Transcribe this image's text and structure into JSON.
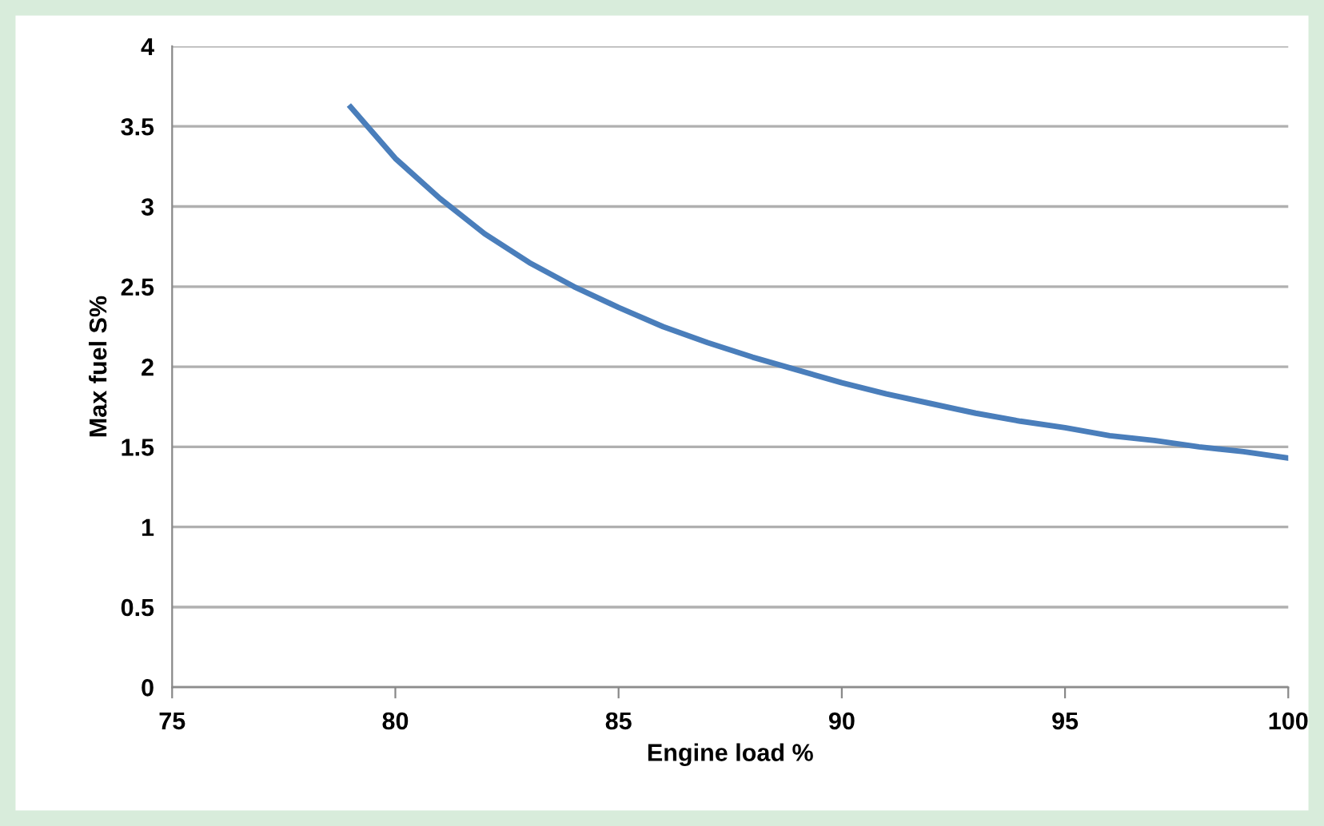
{
  "chart_data": {
    "type": "line",
    "xlabel": "Engine load %",
    "ylabel": "Max fuel S%",
    "x": [
      79,
      80,
      81,
      82,
      83,
      84,
      85,
      86,
      87,
      88,
      89,
      90,
      91,
      92,
      93,
      94,
      95,
      96,
      97,
      98,
      99,
      100
    ],
    "series": [
      {
        "color": "#4a7ebb",
        "values": [
          3.62,
          3.3,
          3.05,
          2.83,
          2.65,
          2.5,
          2.37,
          2.25,
          2.15,
          2.06,
          1.98,
          1.9,
          1.83,
          1.77,
          1.71,
          1.66,
          1.62,
          1.57,
          1.54,
          1.5,
          1.47,
          1.43
        ]
      }
    ],
    "xlim": [
      75,
      100
    ],
    "xticks": [
      75,
      80,
      85,
      90,
      95,
      100
    ],
    "ylim": [
      0,
      4
    ],
    "yticks": [
      0,
      0.5,
      1,
      1.5,
      2,
      2.5,
      3,
      3.5,
      4
    ],
    "grid": "y",
    "legend": false,
    "marker": "none",
    "line_style": "solid"
  }
}
